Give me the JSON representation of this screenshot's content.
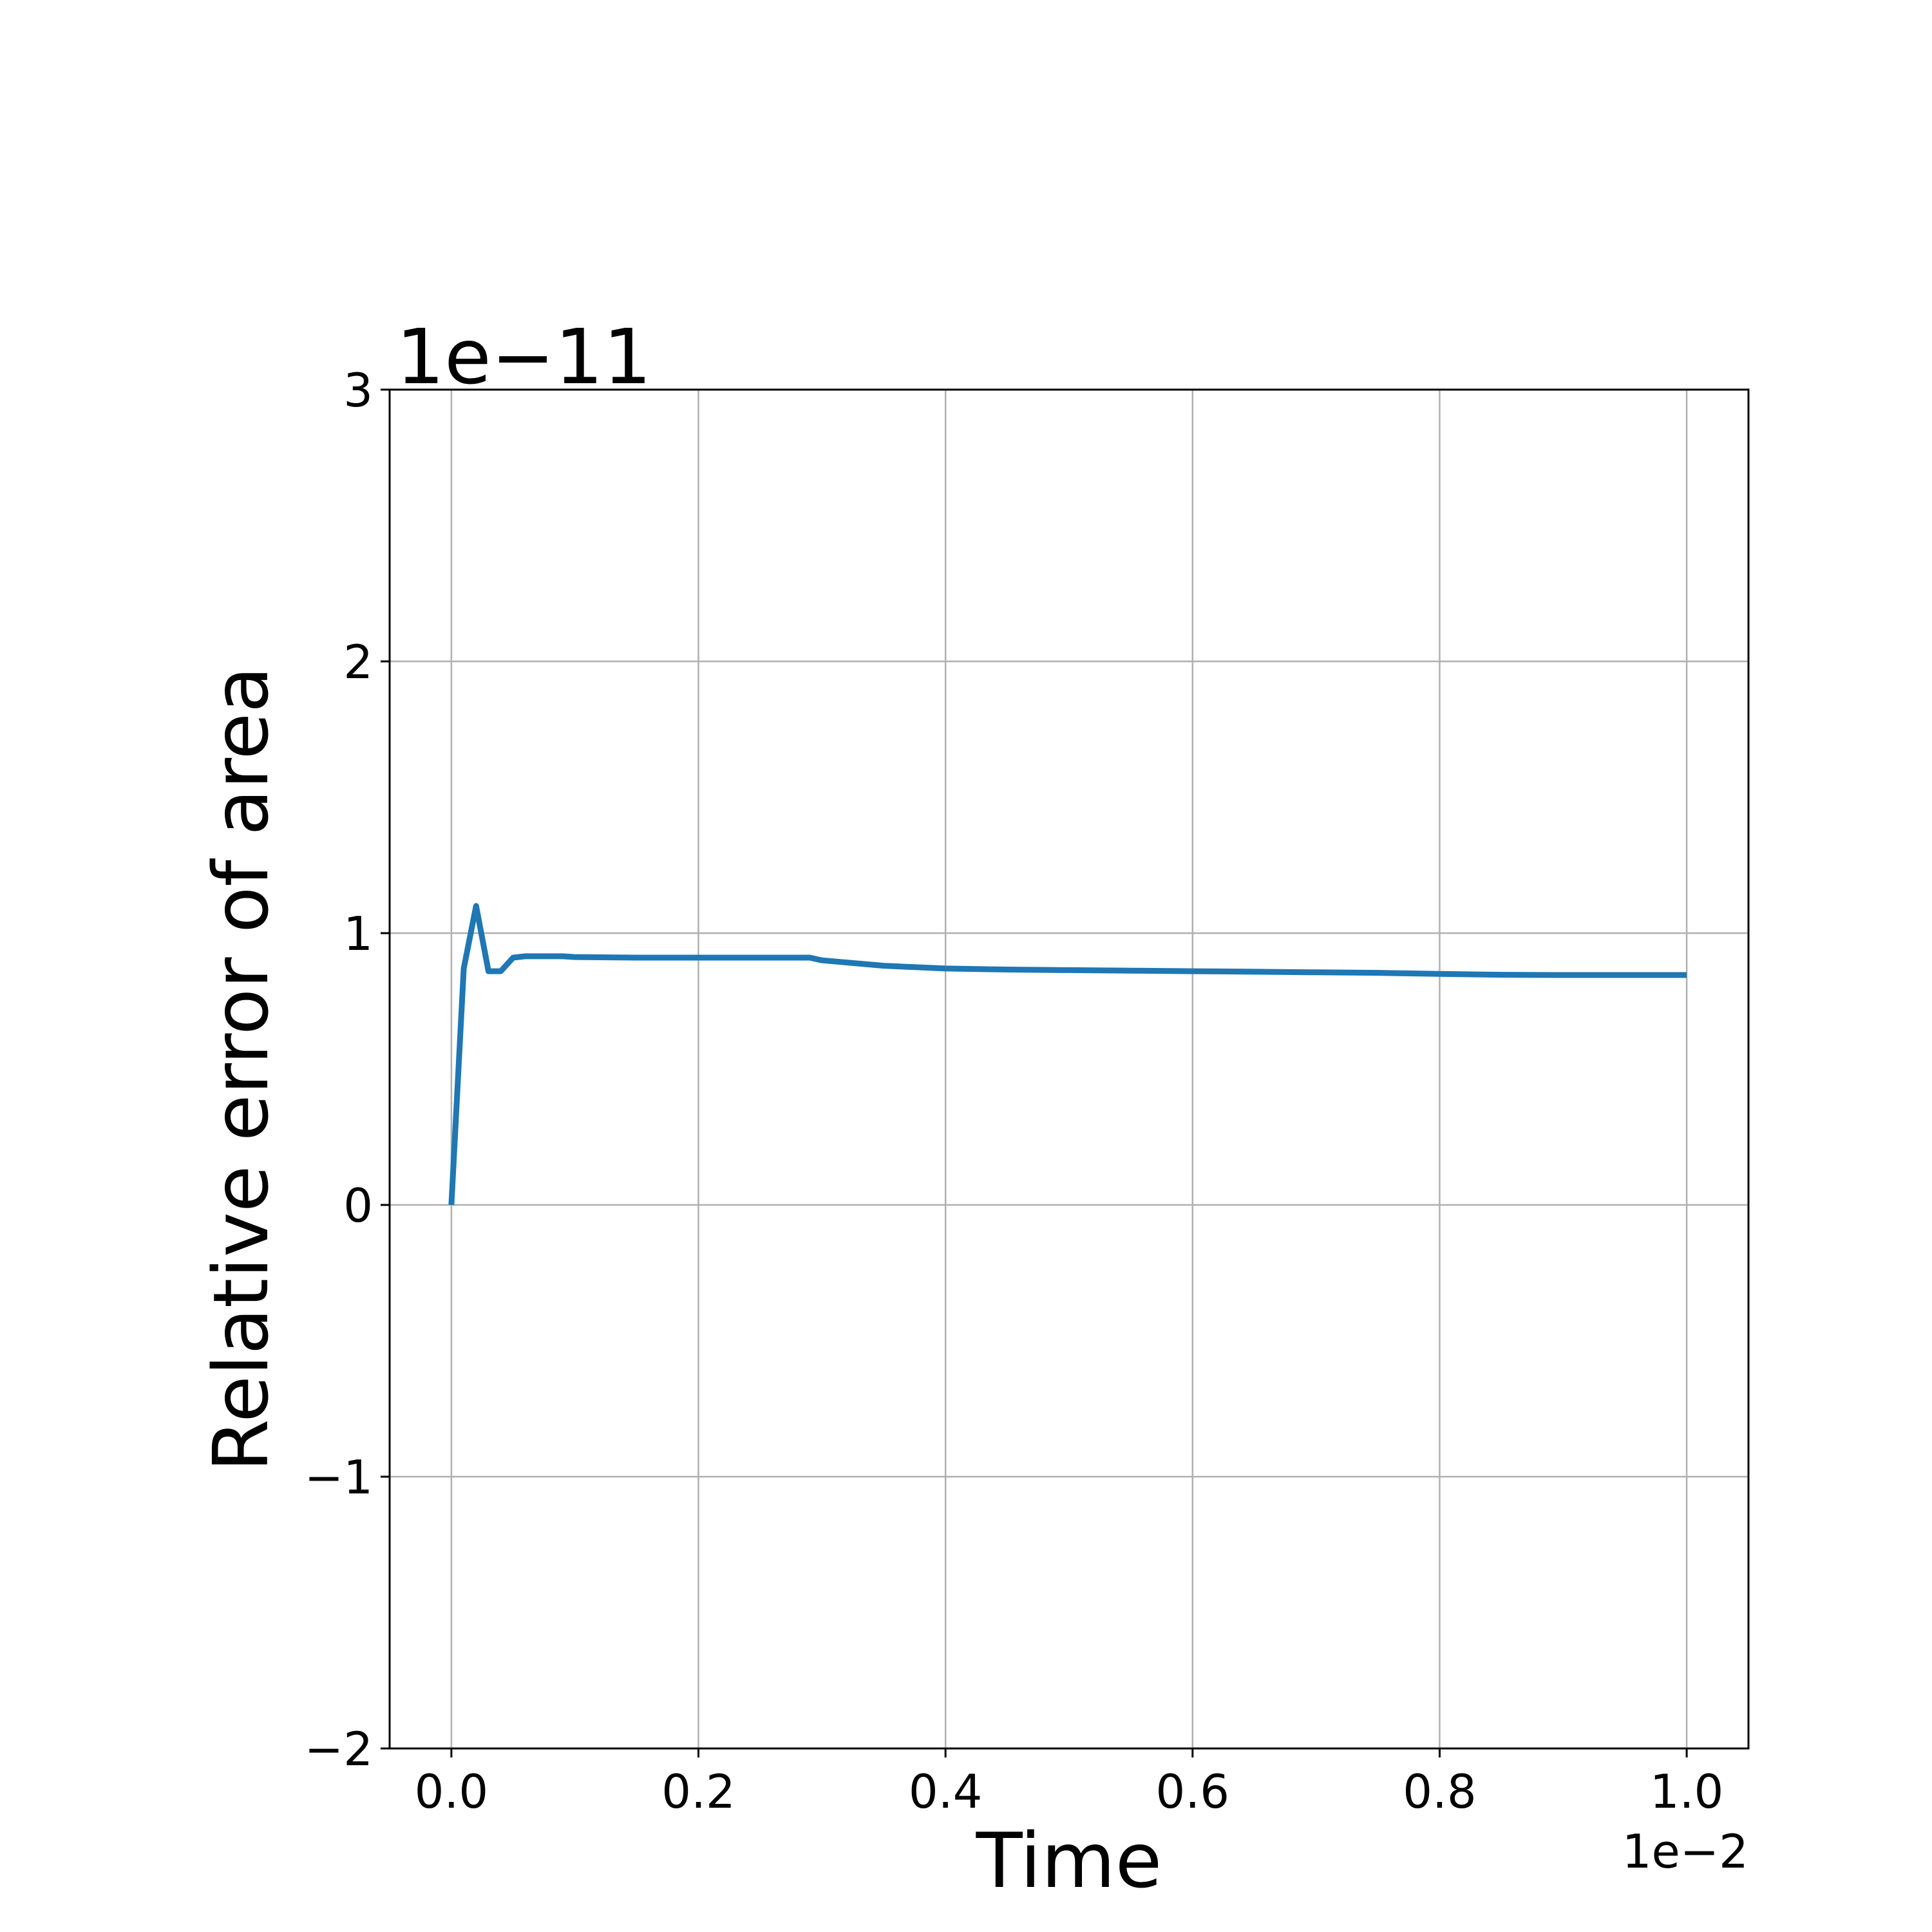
{
  "chart_data": {
    "type": "line",
    "title": "",
    "xlabel": "Time",
    "ylabel": "Relative error of area",
    "x_offset_text": "1e−2",
    "y_offset_text": "1e−11",
    "xlim": [
      -0.05,
      1.05
    ],
    "ylim": [
      -2,
      3
    ],
    "x_scale_note": "x values shown in units of 1e-2",
    "y_scale_note": "y values shown in units of 1e-11",
    "xticks": [
      0.0,
      0.2,
      0.4,
      0.6,
      0.8,
      1.0
    ],
    "xtick_labels": [
      "0.0",
      "0.2",
      "0.4",
      "0.6",
      "0.8",
      "1.0"
    ],
    "yticks": [
      -2,
      -1,
      0,
      1,
      2,
      3
    ],
    "ytick_labels": [
      "−2",
      "−1",
      "0",
      "1",
      "2",
      "3"
    ],
    "grid": true,
    "legend": "none",
    "series": [
      {
        "color": "#1f77b4",
        "x": [
          0.0,
          0.01,
          0.02,
          0.03,
          0.04,
          0.05,
          0.06,
          0.07,
          0.08,
          0.09,
          0.1,
          0.15,
          0.2,
          0.25,
          0.29,
          0.3,
          0.35,
          0.4,
          0.45,
          0.5,
          0.55,
          0.6,
          0.65,
          0.7,
          0.75,
          0.8,
          0.85,
          0.9,
          0.95,
          1.0
        ],
        "y": [
          0.0,
          0.87,
          1.1,
          0.86,
          0.86,
          0.91,
          0.915,
          0.915,
          0.915,
          0.915,
          0.912,
          0.91,
          0.91,
          0.91,
          0.91,
          0.9,
          0.88,
          0.87,
          0.866,
          0.864,
          0.862,
          0.86,
          0.858,
          0.856,
          0.854,
          0.85,
          0.847,
          0.846,
          0.846,
          0.846
        ]
      }
    ]
  }
}
